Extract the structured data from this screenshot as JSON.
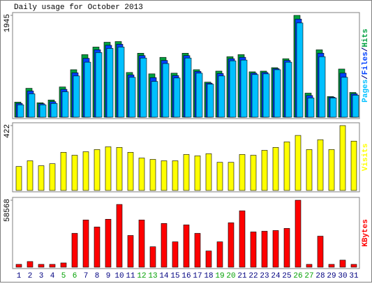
{
  "chart_data": [
    {
      "type": "bar3",
      "title": "Daily usage for October 2013",
      "legend_separator": "/",
      "ylim": [
        0,
        1945
      ],
      "yticks": [
        1945
      ],
      "series": [
        {
          "name": "Pages",
          "color": "#00c0ff",
          "values": [
            237,
            447,
            237,
            263,
            486,
            788,
            1051,
            1235,
            1314,
            1340,
            762,
            1130,
            683,
            1025,
            749,
            1130,
            841,
            631,
            788,
            1077,
            1091,
            815,
            828,
            907,
            1051,
            1800,
            368,
            1156,
            368,
            762,
            420
          ]
        },
        {
          "name": "Files",
          "color": "#0040ff",
          "values": [
            263,
            500,
            257,
            296,
            532,
            848,
            1124,
            1288,
            1373,
            1393,
            808,
            1176,
            756,
            1084,
            795,
            1176,
            874,
            651,
            834,
            1117,
            1144,
            841,
            854,
            927,
            1084,
            1873,
            414,
            1222,
            381,
            841,
            447
          ]
        },
        {
          "name": "Hits",
          "color": "#00a040",
          "values": [
            289,
            552,
            276,
            329,
            578,
            907,
            1196,
            1340,
            1432,
            1445,
            854,
            1222,
            828,
            1143,
            841,
            1222,
            907,
            670,
            880,
            1156,
            1196,
            867,
            880,
            946,
            1117,
            1945,
            460,
            1287,
            394,
            920,
            473
          ]
        }
      ]
    },
    {
      "type": "bar",
      "ylim": [
        0,
        422
      ],
      "yticks": [
        422
      ],
      "series": [
        {
          "name": "Visits",
          "color": "#ffff00",
          "values": [
            156,
            193,
            161,
            174,
            248,
            229,
            252,
            266,
            284,
            280,
            248,
            211,
            202,
            193,
            193,
            234,
            225,
            239,
            183,
            183,
            234,
            229,
            261,
            280,
            316,
            358,
            266,
            330,
            266,
            422,
            321
          ]
        }
      ]
    },
    {
      "type": "bar",
      "ylim": [
        0,
        58568
      ],
      "yticks": [
        58568
      ],
      "categories": [
        "1",
        "2",
        "3",
        "4",
        "5",
        "6",
        "7",
        "8",
        "9",
        "10",
        "11",
        "12",
        "13",
        "14",
        "15",
        "16",
        "17",
        "18",
        "19",
        "20",
        "21",
        "22",
        "23",
        "24",
        "25",
        "26",
        "27",
        "28",
        "29",
        "30",
        "31"
      ],
      "category_colors": [
        "#000080",
        "#000080",
        "#000080",
        "#000080",
        "#00a000",
        "#00a000",
        "#000080",
        "#000080",
        "#000080",
        "#000080",
        "#000080",
        "#00a000",
        "#00a000",
        "#000080",
        "#000080",
        "#000080",
        "#000080",
        "#000080",
        "#00a000",
        "#00a000",
        "#000080",
        "#000080",
        "#000080",
        "#000080",
        "#000080",
        "#00a000",
        "#00a000",
        "#000080",
        "#000080",
        "#000080",
        "#000080"
      ],
      "series": [
        {
          "name": "KBytes",
          "color": "#ff0000",
          "values": [
            2466,
            4932,
            2466,
            2466,
            3699,
            29592,
            41306,
            35141,
            41922,
            54869,
            27743,
            41306,
            17879,
            38223,
            22194,
            36990,
            29592,
            14180,
            22194,
            38840,
            49320,
            30825,
            31442,
            32058,
            33908,
            58568,
            2466,
            27126,
            2466,
            6165,
            2466
          ]
        }
      ]
    }
  ]
}
